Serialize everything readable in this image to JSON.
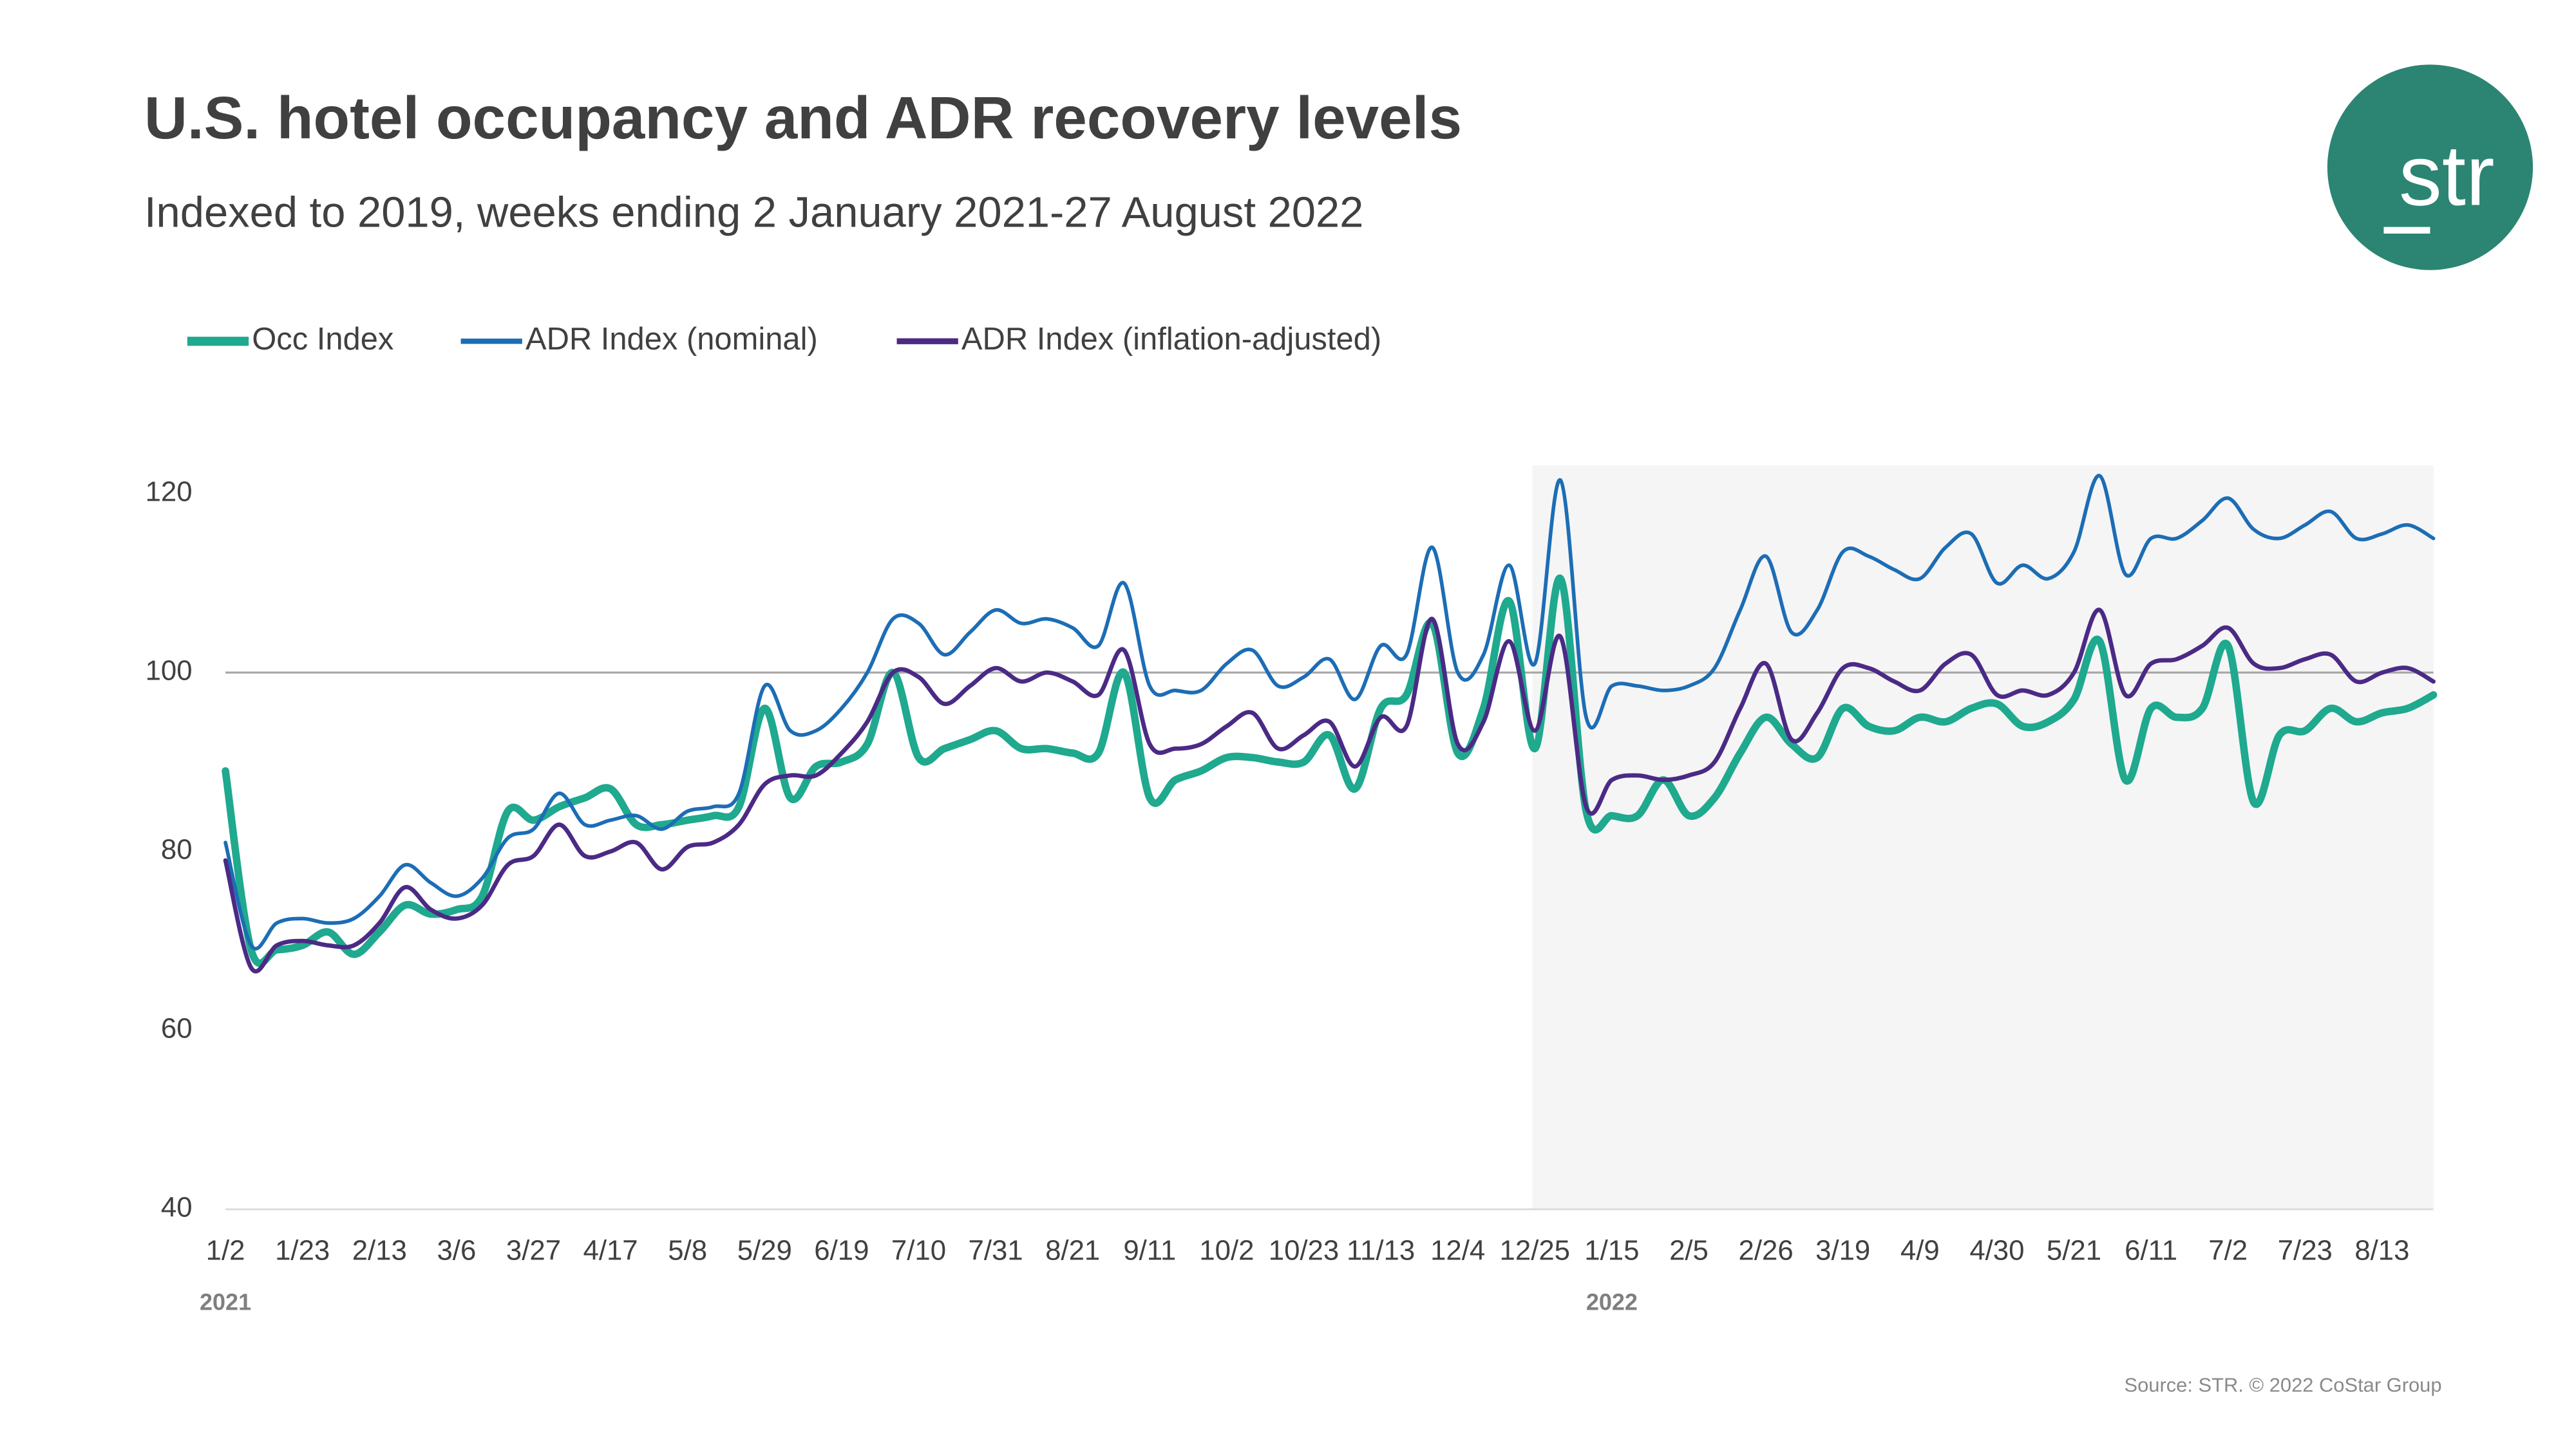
{
  "chart_data": {
    "type": "line",
    "title": "U.S. hotel occupancy and ADR recovery levels",
    "subtitle": "Indexed to 2019, weeks ending 2 January 2021-27 August 2022",
    "source": "Source: STR. © 2022 CoStar Group",
    "logo": "str",
    "categories": [
      "1/2",
      null,
      null,
      "1/23",
      null,
      null,
      "2/13",
      null,
      null,
      "3/6",
      null,
      null,
      "3/27",
      null,
      null,
      "4/17",
      null,
      null,
      "5/8",
      null,
      null,
      "5/29",
      null,
      null,
      "6/19",
      null,
      null,
      "7/10",
      null,
      null,
      "7/31",
      null,
      null,
      "8/21",
      null,
      null,
      "9/11",
      null,
      null,
      "10/2",
      null,
      null,
      "10/23",
      null,
      null,
      "11/13",
      null,
      null,
      "12/4",
      null,
      null,
      "12/25",
      null,
      null,
      "1/15",
      null,
      null,
      "2/5",
      null,
      null,
      "2/26",
      null,
      null,
      "3/19",
      null,
      null,
      "4/9",
      null,
      null,
      "4/30",
      null,
      null,
      "5/21",
      null,
      null,
      "6/11",
      null,
      null,
      "7/2",
      null,
      null,
      "7/23",
      null,
      null,
      "8/13",
      null,
      null
    ],
    "year_labels": [
      "2021",
      null,
      null,
      null,
      null,
      null,
      null,
      null,
      null,
      null,
      null,
      null,
      null,
      null,
      null,
      null,
      null,
      null,
      null,
      null,
      null,
      null,
      null,
      null,
      null,
      null,
      null,
      null,
      null,
      null,
      null,
      null,
      null,
      null,
      null,
      null,
      null,
      null,
      null,
      null,
      null,
      null,
      null,
      null,
      null,
      null,
      null,
      null,
      null,
      null,
      null,
      null,
      null,
      null,
      "2022",
      null,
      null,
      null,
      null,
      null,
      null,
      null,
      null,
      null,
      null,
      null,
      null,
      null,
      null,
      null,
      null,
      null,
      null,
      null,
      null,
      null,
      null,
      null,
      null,
      null,
      null,
      null,
      null,
      null,
      null,
      null,
      null
    ],
    "series": [
      {
        "name": "Occ Index",
        "color": "#1fa98e",
        "width": 4.5,
        "values": [
          89,
          69,
          69,
          69.5,
          71,
          68.5,
          71,
          74,
          73,
          73.5,
          75,
          84.5,
          83.5,
          85,
          86,
          87,
          83,
          83,
          83.5,
          84,
          85,
          96,
          86,
          89.5,
          90,
          92,
          100,
          90.5,
          91.5,
          92.5,
          93.5,
          91.5,
          91.5,
          91,
          91,
          100,
          86,
          88,
          89,
          90.5,
          90.5,
          90,
          90,
          93,
          87,
          96,
          97.5,
          105.5,
          91,
          96,
          108,
          91.5,
          110.5,
          84.5,
          84,
          84,
          88,
          84,
          86,
          91,
          95,
          92,
          90.5,
          96,
          94,
          93.5,
          95,
          94.5,
          96,
          96.5,
          94,
          94.5,
          97,
          103.5,
          88,
          96,
          95,
          96,
          103,
          85.5,
          93,
          93.5,
          96,
          94.5,
          95.5,
          96,
          97.5
        ]
      },
      {
        "name": "ADR Index (nominal)",
        "color": "#1c6db5",
        "width": 2.2,
        "values": [
          81,
          69.5,
          72,
          72.5,
          72,
          72.5,
          75,
          78.5,
          76.5,
          75,
          77,
          81.5,
          82.5,
          86.5,
          83,
          83.5,
          84,
          82.5,
          84.5,
          85,
          86.5,
          98.5,
          93.5,
          93.5,
          96,
          100,
          106,
          105.5,
          102,
          104.5,
          107,
          105.5,
          106,
          105,
          103,
          110,
          98.5,
          98,
          98,
          101,
          102.5,
          98.5,
          99.5,
          101.5,
          97,
          103,
          102,
          114,
          100,
          102,
          112,
          101,
          121.5,
          95,
          98.5,
          98.5,
          98,
          98.5,
          100.5,
          107,
          113,
          104.5,
          107,
          113.5,
          113,
          111.5,
          110.5,
          114,
          115.5,
          110,
          112,
          110.5,
          113.5,
          122,
          111,
          115,
          115,
          117,
          119.5,
          116,
          115,
          116.5,
          118,
          115,
          115.5,
          116.5,
          115
        ]
      },
      {
        "name": "ADR Index (inflation-adjusted)",
        "color": "#4b2a85",
        "width": 2.6,
        "values": [
          79,
          67,
          69.5,
          70,
          69.5,
          69.5,
          72,
          76,
          73.5,
          72.5,
          74,
          78.5,
          79.5,
          83,
          79.5,
          80,
          81,
          78,
          80.5,
          81,
          83,
          87.5,
          88.5,
          88.5,
          91,
          94.5,
          100,
          99.5,
          96.5,
          98.5,
          100.5,
          99,
          100,
          99,
          97.5,
          102.5,
          92,
          91.5,
          92,
          94,
          95.5,
          91.5,
          93,
          94.5,
          89.5,
          95,
          94,
          106,
          92,
          94.5,
          103.5,
          93.5,
          104,
          85,
          88,
          88.5,
          88,
          88.5,
          90,
          96,
          101,
          92.5,
          95.5,
          100.5,
          100.5,
          99,
          98,
          101,
          102,
          97.5,
          98,
          97.5,
          100,
          107,
          97.5,
          101,
          101.5,
          103,
          105,
          101,
          100.5,
          101.5,
          102,
          99,
          100,
          100.5,
          99
        ]
      }
    ],
    "ylim": [
      40,
      120
    ],
    "yticks": [
      40,
      60,
      80,
      100,
      120
    ],
    "reference_line": 100,
    "grid": false,
    "legend": "top-left"
  }
}
